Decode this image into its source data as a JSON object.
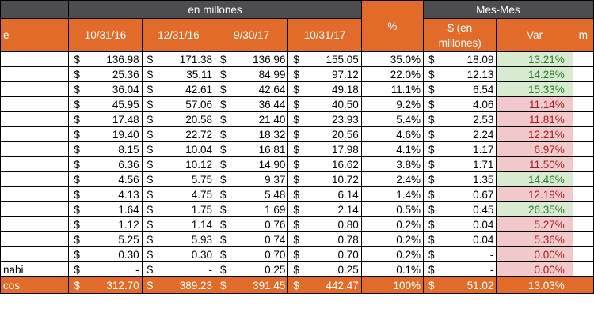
{
  "header": {
    "group_millones": "en millones",
    "group_pct": "%",
    "group_mesmes": "Mes-Mes",
    "label_col_fragment": "e",
    "right_fragment": "m",
    "dates": [
      "10/31/16",
      "12/31/16",
      "9/30/17",
      "10/31/17"
    ],
    "mm_dollar": "$ (en millones)",
    "mm_var": "Var"
  },
  "currency_symbol": "$",
  "rows": [
    {
      "label": "",
      "v1": "136.98",
      "v2": "171.38",
      "v3": "136.96",
      "v4": "155.05",
      "pct": "35.0%",
      "mm": "18.09",
      "var": "13.21%",
      "sign": "pos"
    },
    {
      "label": "",
      "v1": "25.36",
      "v2": "35.11",
      "v3": "84.99",
      "v4": "97.12",
      "pct": "22.0%",
      "mm": "12.13",
      "var": "14.28%",
      "sign": "pos"
    },
    {
      "label": "",
      "v1": "36.04",
      "v2": "42.61",
      "v3": "42.64",
      "v4": "49.18",
      "pct": "11.1%",
      "mm": "6.54",
      "var": "15.33%",
      "sign": "pos"
    },
    {
      "label": "",
      "v1": "45.95",
      "v2": "57.06",
      "v3": "36.44",
      "v4": "40.50",
      "pct": "9.2%",
      "mm": "4.06",
      "var": "11.14%",
      "sign": "neg"
    },
    {
      "label": "",
      "v1": "17.48",
      "v2": "20.58",
      "v3": "21.40",
      "v4": "23.93",
      "pct": "5.4%",
      "mm": "2.53",
      "var": "11.81%",
      "sign": "neg"
    },
    {
      "label": "",
      "v1": "19.40",
      "v2": "22.72",
      "v3": "18.32",
      "v4": "20.56",
      "pct": "4.6%",
      "mm": "2.24",
      "var": "12.21%",
      "sign": "neg"
    },
    {
      "label": "",
      "v1": "8.15",
      "v2": "10.04",
      "v3": "16.81",
      "v4": "17.98",
      "pct": "4.1%",
      "mm": "1.17",
      "var": "6.97%",
      "sign": "neg"
    },
    {
      "label": "",
      "v1": "6.36",
      "v2": "10.12",
      "v3": "14.90",
      "v4": "16.62",
      "pct": "3.8%",
      "mm": "1.71",
      "var": "11.50%",
      "sign": "neg"
    },
    {
      "label": "",
      "v1": "4.56",
      "v2": "5.75",
      "v3": "9.37",
      "v4": "10.72",
      "pct": "2.4%",
      "mm": "1.35",
      "var": "14.46%",
      "sign": "pos"
    },
    {
      "label": "",
      "v1": "4.13",
      "v2": "4.75",
      "v3": "5.48",
      "v4": "6.14",
      "pct": "1.4%",
      "mm": "0.67",
      "var": "12.19%",
      "sign": "neg"
    },
    {
      "label": "",
      "v1": "1.64",
      "v2": "1.75",
      "v3": "1.69",
      "v4": "2.14",
      "pct": "0.5%",
      "mm": "0.45",
      "var": "26.35%",
      "sign": "pos"
    },
    {
      "label": "",
      "v1": "1.12",
      "v2": "1.14",
      "v3": "0.76",
      "v4": "0.80",
      "pct": "0.2%",
      "mm": "0.04",
      "var": "5.27%",
      "sign": "neg"
    },
    {
      "label": "",
      "v1": "5.25",
      "v2": "5.93",
      "v3": "0.74",
      "v4": "0.78",
      "pct": "0.2%",
      "mm": "0.04",
      "var": "5.36%",
      "sign": "neg"
    },
    {
      "label": "",
      "v1": "0.30",
      "v2": "0.30",
      "v3": "0.70",
      "v4": "0.70",
      "pct": "0.2%",
      "mm": "-",
      "var": "0.00%",
      "sign": "neg"
    },
    {
      "label": "nabi",
      "v1": "-",
      "v2": "-",
      "v3": "0.25",
      "v4": "0.25",
      "pct": "0.1%",
      "mm": "-",
      "var": "0.00%",
      "sign": "neg"
    }
  ],
  "total": {
    "label": "cos",
    "v1": "312.70",
    "v2": "389.23",
    "v3": "391.45",
    "v4": "442.47",
    "pct": "100%",
    "mm": "51.02",
    "var": "13.03%"
  },
  "colors": {
    "header_dark": "#4d4d4f",
    "header_orange": "#e26b29",
    "positive_fill": "#d8ebd1",
    "negative_fill": "#f2c9cb"
  }
}
